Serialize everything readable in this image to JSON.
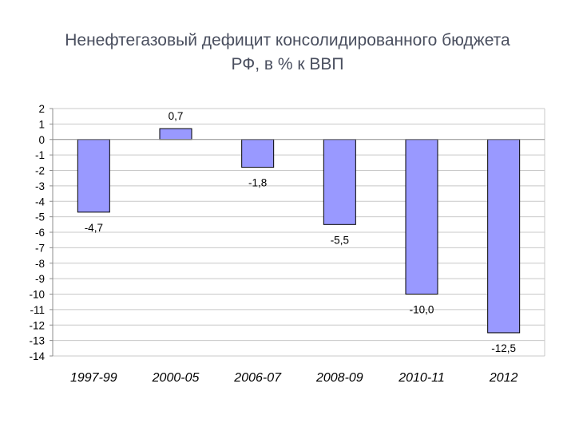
{
  "slide": {
    "title_line1": "Ненефтегазовый дефицит консолидированного бюджета",
    "title_line2": "РФ, в % к ВВП"
  },
  "chart_data": {
    "type": "bar",
    "categories": [
      "1997-99",
      "2000-05",
      "2006-07",
      "2008-09",
      "2010-11",
      "2012"
    ],
    "values": [
      -4.7,
      0.7,
      -1.8,
      -5.5,
      -10.0,
      -12.5
    ],
    "data_labels": [
      "-4,7",
      "0,7",
      "-1,8",
      "-5,5",
      "-10,0",
      "-12,5"
    ],
    "title": "",
    "xlabel": "",
    "ylabel": "",
    "ylim": [
      -14,
      2
    ],
    "yticks": [
      2,
      1,
      0,
      -1,
      -2,
      -3,
      -4,
      -5,
      -6,
      -7,
      -8,
      -9,
      -10,
      -11,
      -12,
      -13,
      -14
    ],
    "grid": true,
    "bar_color": "#9999ff",
    "bar_stroke": "#000000"
  }
}
